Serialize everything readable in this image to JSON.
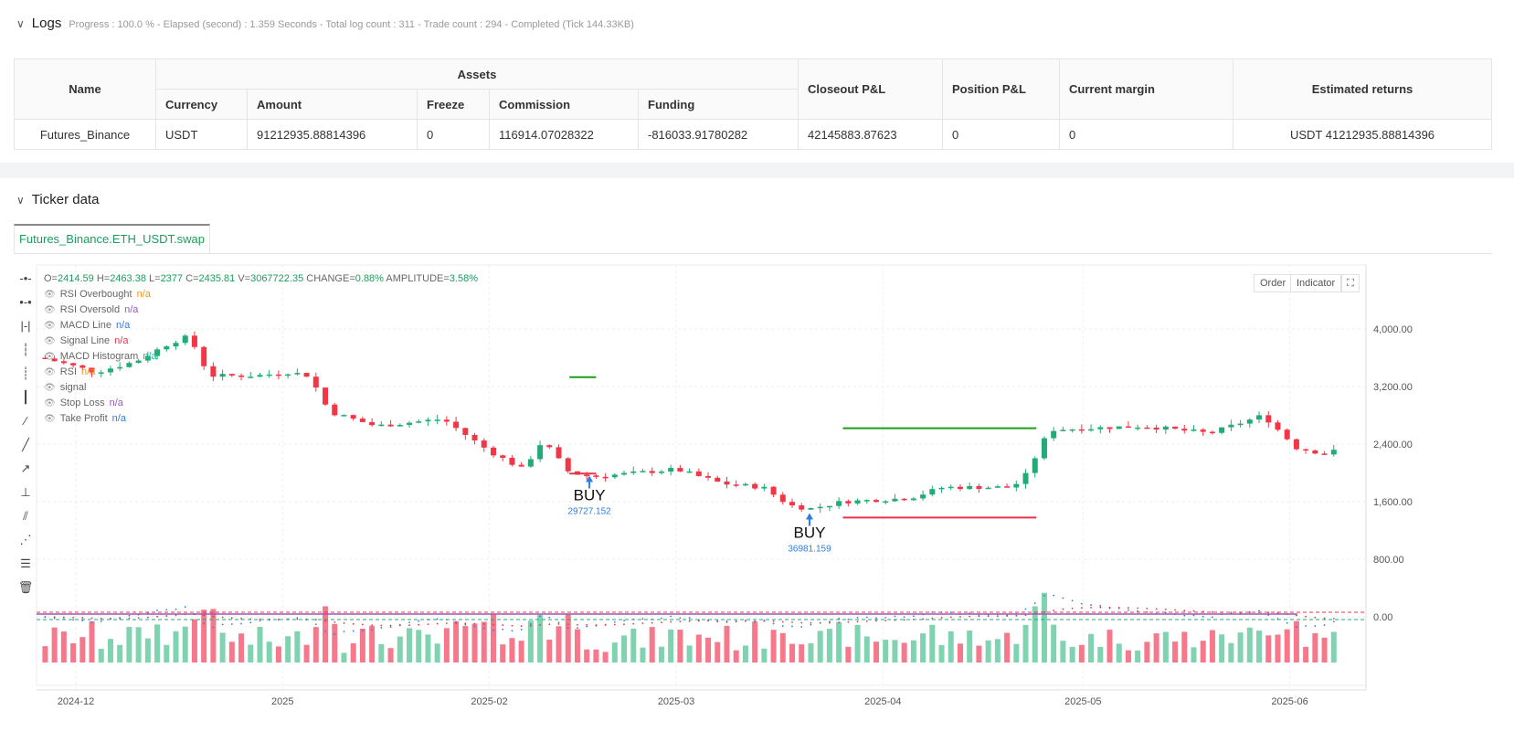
{
  "logs": {
    "title": "Logs",
    "summary": "Progress : 100.0 % - Elapsed (second) : 1.359  Seconds - Total log count : 311 - Trade count : 294 - Completed (Tick 144.33KB)"
  },
  "table": {
    "headers": {
      "name": "Name",
      "assets": "Assets",
      "closeout": "Closeout P&L",
      "position": "Position P&L",
      "margin": "Current margin",
      "returns": "Estimated returns"
    },
    "sub_headers": [
      "Currency",
      "Amount",
      "Freeze",
      "Commission",
      "Funding"
    ],
    "row": {
      "name": "Futures_Binance",
      "currency": "USDT",
      "amount": "91212935.88814396",
      "freeze": "0",
      "commission": "116914.07028322",
      "funding": "-816033.91780282",
      "closeout": "42145883.87623",
      "position": "0",
      "margin": "0",
      "returns": "USDT 41212935.88814396"
    }
  },
  "ticker": {
    "title": "Ticker data",
    "tab": "Futures_Binance.ETH_USDT.swap",
    "ohlc": {
      "o_label": "O=",
      "o": "2414.59",
      "h_label": "H=",
      "h": "2463.38",
      "l_label": "L=",
      "l": "2377",
      "c_label": "C=",
      "c": "2435.81",
      "v_label": "V=",
      "v": "3067722.35",
      "change_label": "CHANGE=",
      "change": "0.88%",
      "amp_label": "AMPLITUDE=",
      "amp": "3.58%"
    },
    "legend": [
      {
        "label": "RSI Overbought",
        "value": "n/a",
        "color": "#f7931a"
      },
      {
        "label": "RSI Oversold",
        "value": "n/a",
        "color": "#9b59b6"
      },
      {
        "label": "MACD Line",
        "value": "n/a",
        "color": "#2f7de1"
      },
      {
        "label": "Signal Line",
        "value": "n/a",
        "color": "#e8334a"
      },
      {
        "label": "MACD Histogram",
        "value": "n/a",
        "color": "#1abc9c"
      },
      {
        "label": "RSI",
        "value": "n/a",
        "color": "#f7931a"
      },
      {
        "label": "signal",
        "value": "",
        "color": "#999"
      },
      {
        "label": "Stop Loss",
        "value": "n/a",
        "color": "#9b59b6"
      },
      {
        "label": "Take Profit",
        "value": "n/a",
        "color": "#2f7de1"
      }
    ],
    "buttons": {
      "order": "Order",
      "indicator": "Indicator"
    }
  },
  "chart_data": {
    "type": "candlestick",
    "price_ticks": [
      "4,000.00",
      "3,200.00",
      "2,400.00",
      "1,600.00",
      "800.00",
      "0.00"
    ],
    "price_tick_values": [
      4000,
      3200,
      2400,
      1600,
      800,
      0
    ],
    "x_ticks": [
      "2024-12",
      "2025",
      "2025-02",
      "2025-03",
      "2025-04",
      "2025-05",
      "2025-06"
    ],
    "x_tick_days": [
      0,
      31,
      62,
      90,
      121,
      151,
      182
    ],
    "close_anchors_day_price": [
      [
        -5,
        3600
      ],
      [
        3,
        3400
      ],
      [
        9,
        3550
      ],
      [
        14,
        3800
      ],
      [
        17,
        3900
      ],
      [
        20,
        3350
      ],
      [
        27,
        3350
      ],
      [
        32,
        3400
      ],
      [
        35,
        3350
      ],
      [
        38,
        2850
      ],
      [
        45,
        2650
      ],
      [
        55,
        2750
      ],
      [
        62,
        2300
      ],
      [
        67,
        2050
      ],
      [
        70,
        2450
      ],
      [
        74,
        2000
      ],
      [
        78,
        1950
      ],
      [
        90,
        2050
      ],
      [
        97,
        1850
      ],
      [
        103,
        1800
      ],
      [
        107,
        1550
      ],
      [
        110,
        1500
      ],
      [
        115,
        1600
      ],
      [
        125,
        1650
      ],
      [
        130,
        1800
      ],
      [
        140,
        1800
      ],
      [
        142,
        1900
      ],
      [
        146,
        2600
      ],
      [
        160,
        2650
      ],
      [
        170,
        2550
      ],
      [
        178,
        2800
      ],
      [
        183,
        2350
      ],
      [
        188,
        2250
      ],
      [
        190,
        2420
      ]
    ],
    "lines": [
      {
        "name": "Take Profit",
        "price": 2620,
        "from_day": 115,
        "to_day": 144,
        "color": "#1a9e1a"
      },
      {
        "name": "Stop Loss",
        "price": 1380,
        "from_day": 115,
        "to_day": 144,
        "color": "#e8334a"
      },
      {
        "name": "Take Profit",
        "price": 3330,
        "from_day": 74,
        "to_day": 78,
        "color": "#1a9e1a"
      },
      {
        "name": "Stop Loss",
        "price": 1990,
        "from_day": 74,
        "to_day": 78,
        "color": "#e8334a"
      }
    ],
    "signals": [
      {
        "label": "BUY",
        "day": 77,
        "price": 2000,
        "amount": "29727.152"
      },
      {
        "label": "BUY",
        "day": 110,
        "price": 1480,
        "amount": "36981.159"
      }
    ],
    "lower_axis": "0.00"
  }
}
